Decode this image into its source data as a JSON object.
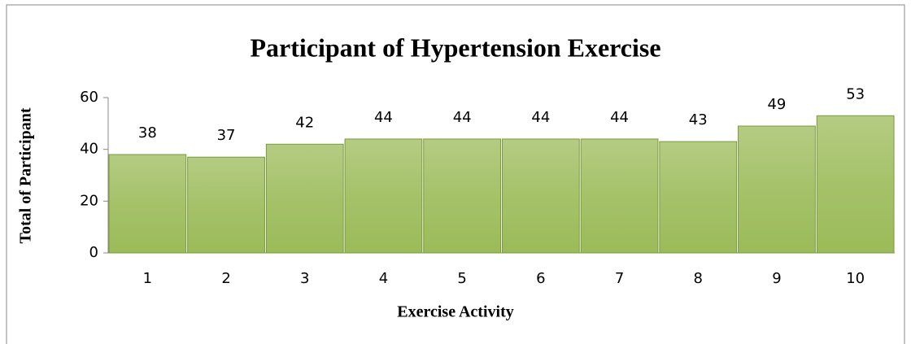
{
  "chart_data": {
    "type": "bar",
    "title": "Participant of Hypertension Exercise",
    "x_label": "Exercise Activity",
    "y_label": "Total of Participant",
    "categories": [
      "1",
      "2",
      "3",
      "4",
      "5",
      "6",
      "7",
      "8",
      "9",
      "10"
    ],
    "values": [
      38,
      37,
      42,
      44,
      44,
      44,
      44,
      43,
      49,
      53
    ],
    "color": "#9bbb59",
    "ylim": [
      0,
      60
    ],
    "yticks": [
      0,
      20,
      40,
      60
    ],
    "grid": false
  }
}
